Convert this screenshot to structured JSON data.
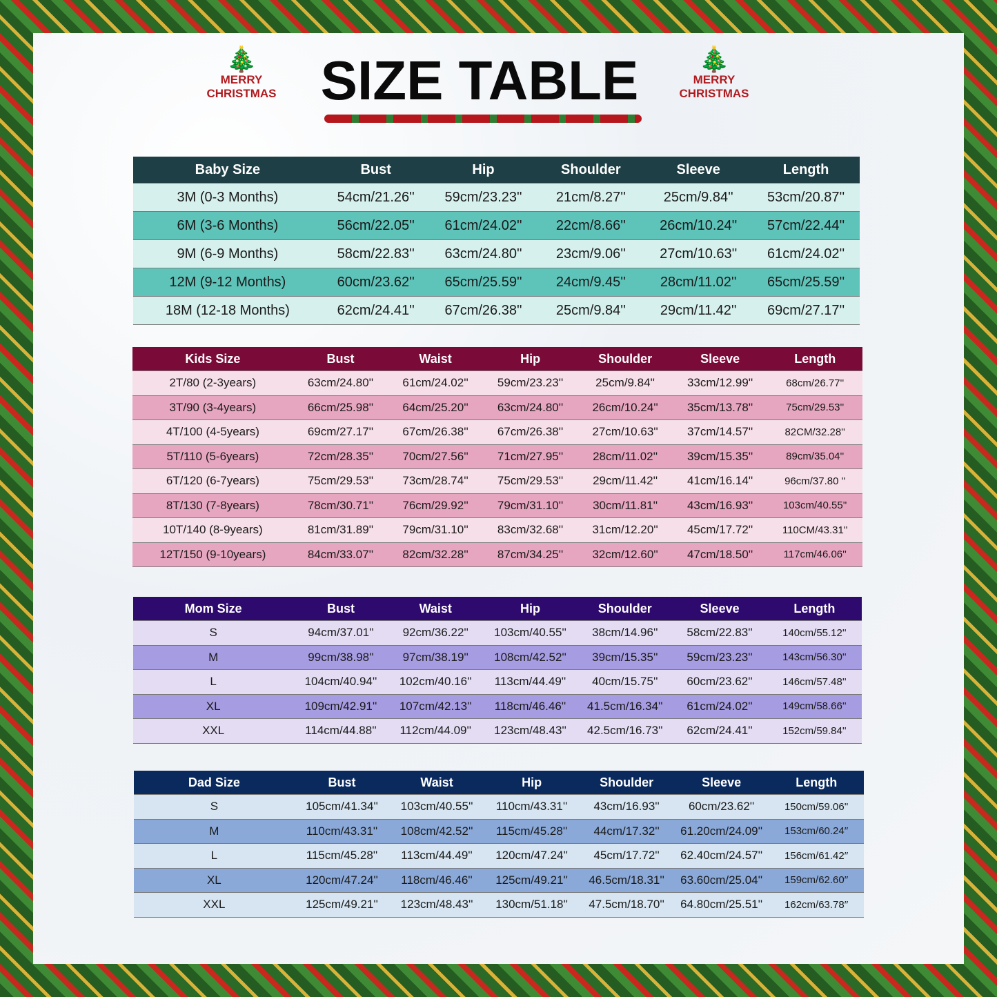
{
  "title": "SIZE TABLE",
  "logo_text": [
    "MERRY",
    "CHRISTMAS"
  ],
  "colors": {
    "baby_header": "#1e3f45",
    "baby_row_a": "#d6f1ed",
    "baby_row_b": "#5ec3b9",
    "kids_header": "#7a0a38",
    "kids_row_a": "#f6dfe8",
    "kids_row_b": "#e6a6bf",
    "mom_header": "#2e0a6e",
    "mom_row_a": "#e3dcf3",
    "mom_row_b": "#a69ce1",
    "dad_header": "#0a2a5e",
    "dad_row_a": "#d6e5f1",
    "dad_row_b": "#8aa9d9"
  },
  "tables": {
    "baby": {
      "headers": [
        "Baby Size",
        "Bust",
        "Hip",
        "Shoulder",
        "Sleeve",
        "Length"
      ],
      "rows": [
        [
          "3M (0-3 Months)",
          "54cm/21.26''",
          "59cm/23.23''",
          "21cm/8.27''",
          "25cm/9.84''",
          "53cm/20.87''"
        ],
        [
          "6M (3-6 Months)",
          "56cm/22.05''",
          "61cm/24.02''",
          "22cm/8.66''",
          "26cm/10.24''",
          "57cm/22.44''"
        ],
        [
          "9M (6-9 Months)",
          "58cm/22.83''",
          "63cm/24.80''",
          "23cm/9.06''",
          "27cm/10.63''",
          "61cm/24.02''"
        ],
        [
          "12M (9-12 Months)",
          "60cm/23.62''",
          "65cm/25.59''",
          "24cm/9.45''",
          "28cm/11.02''",
          "65cm/25.59''"
        ],
        [
          "18M (12-18 Months)",
          "62cm/24.41''",
          "67cm/26.38''",
          "25cm/9.84''",
          "29cm/11.42''",
          "69cm/27.17''"
        ]
      ]
    },
    "kids": {
      "headers": [
        "Kids Size",
        "Bust",
        "Waist",
        "Hip",
        "Shoulder",
        "Sleeve",
        "Length"
      ],
      "rows": [
        [
          "2T/80 (2-3years)",
          "63cm/24.80''",
          "61cm/24.02''",
          "59cm/23.23''",
          "25cm/9.84''",
          "33cm/12.99''",
          "68cm/26.77''"
        ],
        [
          "3T/90 (3-4years)",
          "66cm/25.98''",
          "64cm/25.20''",
          "63cm/24.80''",
          "26cm/10.24''",
          "35cm/13.78''",
          "75cm/29.53''"
        ],
        [
          "4T/100 (4-5years)",
          "69cm/27.17''",
          "67cm/26.38''",
          "67cm/26.38''",
          "27cm/10.63''",
          "37cm/14.57''",
          "82CM/32.28''"
        ],
        [
          "5T/110 (5-6years)",
          "72cm/28.35''",
          "70cm/27.56''",
          "71cm/27.95''",
          "28cm/11.02''",
          "39cm/15.35''",
          "89cm/35.04''"
        ],
        [
          "6T/120 (6-7years)",
          "75cm/29.53''",
          "73cm/28.74''",
          "75cm/29.53''",
          "29cm/11.42''",
          "41cm/16.14''",
          "96cm/37.80 ''"
        ],
        [
          "8T/130 (7-8years)",
          "78cm/30.71''",
          "76cm/29.92''",
          "79cm/31.10''",
          "30cm/11.81''",
          "43cm/16.93''",
          "103cm/40.55''"
        ],
        [
          "10T/140 (8-9years)",
          "81cm/31.89''",
          "79cm/31.10''",
          "83cm/32.68''",
          "31cm/12.20''",
          "45cm/17.72''",
          "110CM/43.31''"
        ],
        [
          "12T/150 (9-10years)",
          "84cm/33.07''",
          "82cm/32.28''",
          "87cm/34.25''",
          "32cm/12.60''",
          "47cm/18.50''",
          "117cm/46.06''"
        ]
      ]
    },
    "mom": {
      "headers": [
        "Mom Size",
        "Bust",
        "Waist",
        "Hip",
        "Shoulder",
        "Sleeve",
        "Length"
      ],
      "rows": [
        [
          "S",
          "94cm/37.01''",
          "92cm/36.22''",
          "103cm/40.55''",
          "38cm/14.96''",
          "58cm/22.83''",
          "140cm/55.12''"
        ],
        [
          "M",
          "99cm/38.98''",
          "97cm/38.19''",
          "108cm/42.52''",
          "39cm/15.35''",
          "59cm/23.23''",
          "143cm/56.30''"
        ],
        [
          "L",
          "104cm/40.94''",
          "102cm/40.16''",
          "113cm/44.49''",
          "40cm/15.75''",
          "60cm/23.62''",
          "146cm/57.48''"
        ],
        [
          "XL",
          "109cm/42.91''",
          "107cm/42.13''",
          "118cm/46.46''",
          "41.5cm/16.34''",
          "61cm/24.02''",
          "149cm/58.66''"
        ],
        [
          "XXL",
          "114cm/44.88''",
          "112cm/44.09''",
          "123cm/48.43''",
          "42.5cm/16.73''",
          "62cm/24.41''",
          "152cm/59.84''"
        ]
      ]
    },
    "dad": {
      "headers": [
        "Dad Size",
        "Bust",
        "Waist",
        "Hip",
        "Shoulder",
        "Sleeve",
        "Length"
      ],
      "rows": [
        [
          "S",
          "105cm/41.34''",
          "103cm/40.55''",
          "110cm/43.31''",
          "43cm/16.93''",
          "60cm/23.62''",
          "150cm/59.06''"
        ],
        [
          "M",
          "110cm/43.31''",
          "108cm/42.52''",
          "115cm/45.28''",
          "44cm/17.32''",
          "61.20cm/24.09''",
          "153cm/60.24′′"
        ],
        [
          "L",
          "115cm/45.28''",
          "113cm/44.49''",
          "120cm/47.24''",
          "45cm/17.72''",
          "62.40cm/24.57''",
          "156cm/61.42′′"
        ],
        [
          "XL",
          "120cm/47.24''",
          "118cm/46.46''",
          "125cm/49.21''",
          "46.5cm/18.31''",
          "63.60cm/25.04''",
          "159cm/62.60′′"
        ],
        [
          "XXL",
          "125cm/49.21''",
          "123cm/48.43''",
          "130cm/51.18''",
          "47.5cm/18.70''",
          "64.80cm/25.51''",
          "162cm/63.78′′"
        ]
      ]
    }
  }
}
